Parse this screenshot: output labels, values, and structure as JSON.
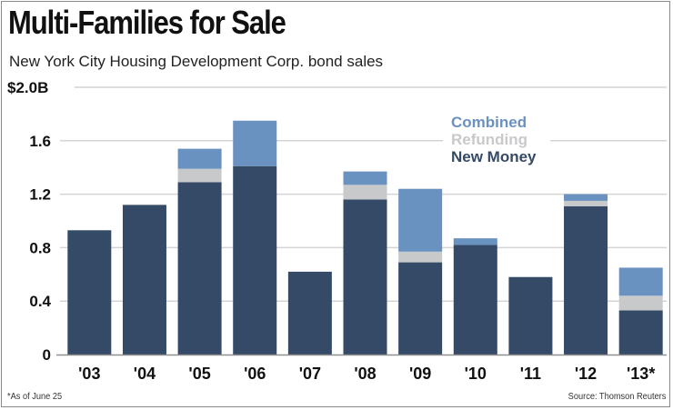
{
  "chart_data": {
    "type": "bar",
    "stacked": true,
    "title": "Multi-Families for Sale",
    "subtitle": "New York City Housing Development Corp. bond sales",
    "xlabel": "",
    "ylabel": "",
    "ylim": [
      0,
      2.0
    ],
    "yticks": [
      {
        "value": 0,
        "label": "0"
      },
      {
        "value": 0.4,
        "label": "0.4"
      },
      {
        "value": 0.8,
        "label": "0.8"
      },
      {
        "value": 1.2,
        "label": "1.2"
      },
      {
        "value": 1.6,
        "label": "1.6"
      },
      {
        "value": 2.0,
        "label": "$2.0B"
      }
    ],
    "grid": true,
    "categories": [
      "'03",
      "'04",
      "'05",
      "'06",
      "'07",
      "'08",
      "'09",
      "'10",
      "'11",
      "'12",
      "'13*"
    ],
    "series": [
      {
        "name": "New Money",
        "color": "#344a66",
        "values": [
          0.93,
          1.12,
          1.29,
          1.41,
          0.62,
          1.16,
          0.69,
          0.82,
          0.58,
          1.11,
          0.33
        ]
      },
      {
        "name": "Refunding",
        "color": "#c8c9cb",
        "values": [
          0,
          0,
          0.1,
          0,
          0,
          0.11,
          0.08,
          0,
          0,
          0.04,
          0.11
        ]
      },
      {
        "name": "Combined",
        "color": "#6a92c0",
        "values": [
          0,
          0,
          0.15,
          0.34,
          0,
          0.1,
          0.47,
          0.05,
          0,
          0.05,
          0.21
        ]
      }
    ],
    "legend": {
      "placement": "top-right",
      "items": [
        {
          "label": "Combined",
          "color": "#6a92c0"
        },
        {
          "label": "Refunding",
          "color": "#c8c9cb"
        },
        {
          "label": "New Money",
          "color": "#344a66"
        }
      ]
    },
    "footnote": "*As of June 25",
    "source": "Source: Thomson Reuters"
  }
}
